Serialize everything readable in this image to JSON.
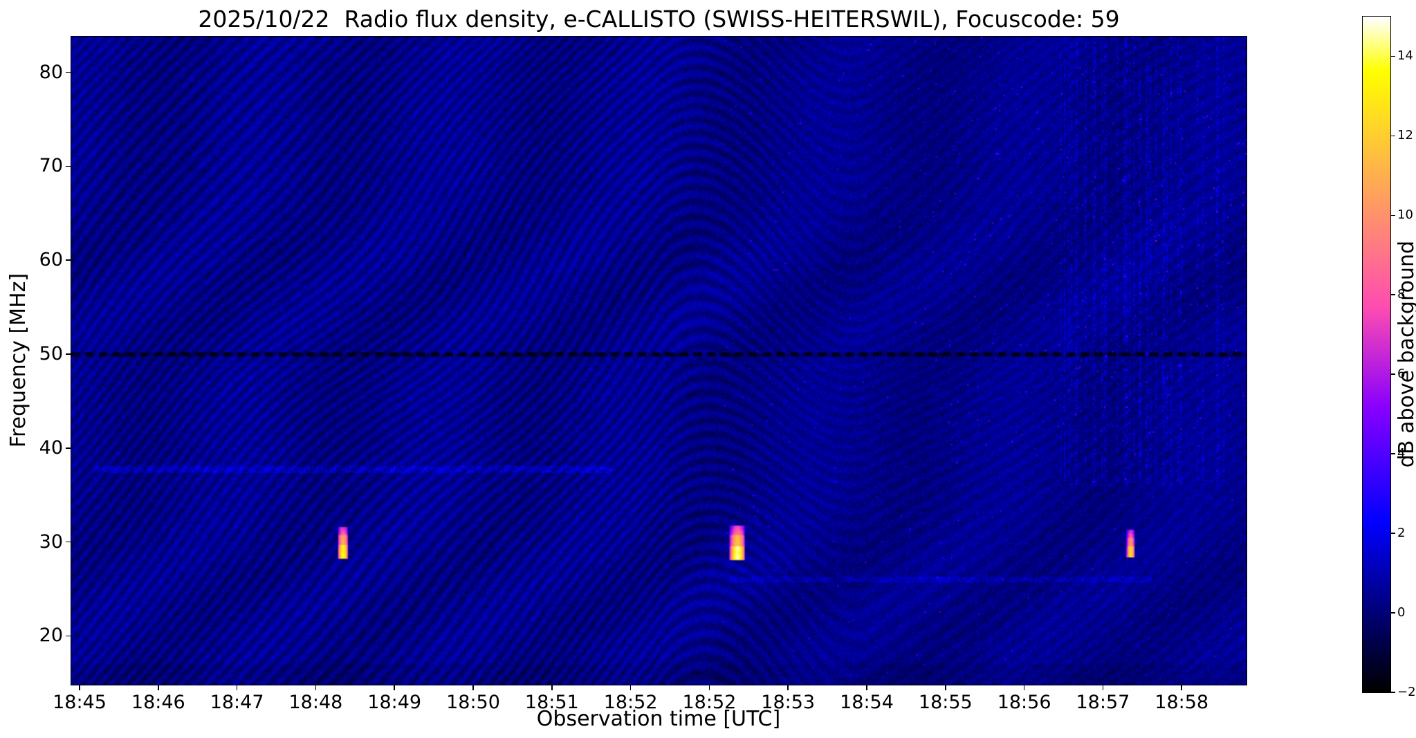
{
  "chart_data": {
    "type": "heatmap",
    "subtype": "radio-spectrogram",
    "title": "2025/10/22  Radio flux density, e-CALLISTO (SWISS-HEITERSWIL), Focuscode: 59",
    "xlabel": "Observation time [UTC]",
    "ylabel": "Frequency [MHz]",
    "x_tick_labels": [
      "18:45",
      "18:46",
      "18:47",
      "18:48",
      "18:49",
      "18:50",
      "18:51",
      "18:52",
      "18:52",
      "18:53",
      "18:54",
      "18:55",
      "18:56",
      "18:57",
      "18:58"
    ],
    "y_tick_values_mhz": [
      20,
      30,
      40,
      50,
      60,
      70,
      80
    ],
    "freq_range_mhz": [
      14.8,
      83.8
    ],
    "time_span_minutes": 15,
    "grid": false,
    "colorbar": {
      "label": "dB above background",
      "tick_values": [
        -2,
        0,
        2,
        4,
        6,
        8,
        10,
        12,
        14
      ],
      "vmin": -2,
      "vmax": 15,
      "colormap": "gnuplot2"
    },
    "background_noise": {
      "mean_db": 0.3,
      "ripple_amp_db": 0.5,
      "random_db": 0.55
    },
    "rfi_lines": [
      {
        "freq_mhz": 50.0,
        "kind": "dark-dashed",
        "span_frac": [
          0.0,
          1.0
        ],
        "db": -1.8
      },
      {
        "freq_mhz": 37.7,
        "kind": "faint-bright",
        "span_frac": [
          0.02,
          0.46
        ],
        "db": 1.1
      },
      {
        "freq_mhz": 25.9,
        "kind": "faint-bright",
        "span_frac": [
          0.56,
          0.92
        ],
        "db": 0.8
      }
    ],
    "bursts": [
      {
        "time_frac": 0.231,
        "approx_time_utc": "18:48.4",
        "freq_low_mhz": 28.2,
        "freq_high_mhz": 31.6,
        "width_frac": 0.0045,
        "peak_db": 13.5
      },
      {
        "time_frac": 0.567,
        "approx_time_utc": "18:52.6",
        "freq_low_mhz": 28.0,
        "freq_high_mhz": 31.7,
        "width_frac": 0.0065,
        "peak_db": 14.5
      },
      {
        "time_frac": 0.902,
        "approx_time_utc": "18:57.5",
        "freq_low_mhz": 28.3,
        "freq_high_mhz": 31.3,
        "width_frac": 0.0035,
        "peak_db": 12.5
      }
    ],
    "vertical_streaks": {
      "span_frac": [
        0.84,
        0.985
      ],
      "min_freq_mhz": 36,
      "max_extra_db": 2.0
    }
  }
}
